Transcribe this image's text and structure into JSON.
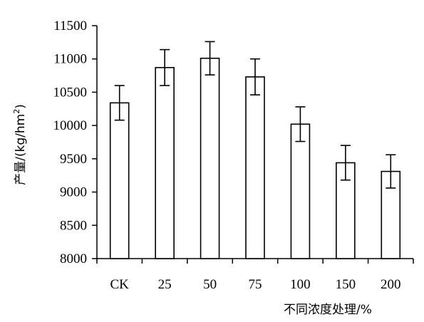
{
  "chart_data": {
    "type": "bar",
    "categories": [
      "CK",
      "25",
      "50",
      "75",
      "100",
      "150",
      "200"
    ],
    "values": [
      10340,
      10870,
      11010,
      10730,
      10020,
      9440,
      9310
    ],
    "error": [
      260,
      270,
      250,
      270,
      260,
      260,
      250
    ],
    "xlabel": "不同浓度处理/%",
    "ylabel": "产量/(kg/hm",
    "ylabel_superscript": "2",
    "ylabel_suffix": ")",
    "ylim": [
      8000,
      11500
    ],
    "yticks": [
      8000,
      8500,
      9000,
      9500,
      10000,
      10500,
      11000,
      11500
    ],
    "grid": false,
    "bar_fill": "#ffffff",
    "bar_stroke": "#000000"
  }
}
